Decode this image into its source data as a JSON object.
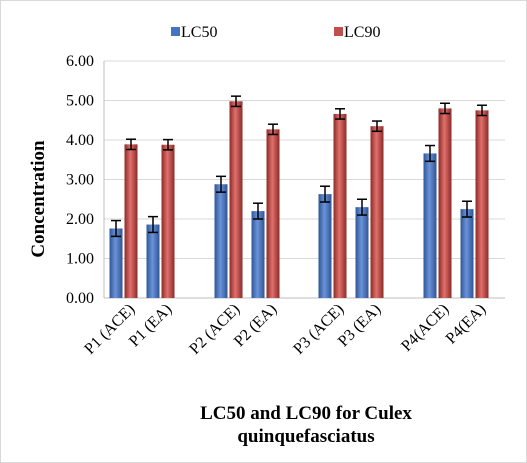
{
  "chart_data": {
    "type": "bar",
    "categories": [
      "P1 (ACE)",
      "P1 (EA)",
      "P2  (ACE)",
      "P2 (EA)",
      "P3 (ACE)",
      "P3 (EA)",
      "P4(ACE)",
      "P4(EA)"
    ],
    "series": [
      {
        "name": "LC50",
        "values": [
          1.76,
          1.86,
          2.88,
          2.2,
          2.63,
          2.3,
          3.66,
          2.25
        ],
        "errors": [
          0.2,
          0.2,
          0.2,
          0.2,
          0.2,
          0.2,
          0.2,
          0.2
        ],
        "color": "#4472c4"
      },
      {
        "name": "LC90",
        "values": [
          3.89,
          3.88,
          4.98,
          4.27,
          4.66,
          4.35,
          4.8,
          4.75
        ],
        "errors": [
          0.13,
          0.13,
          0.13,
          0.13,
          0.13,
          0.13,
          0.13,
          0.13
        ],
        "color": "#c0504d"
      }
    ],
    "title": "LC50 and LC90 for Culex quinquefasciatus",
    "title_lines": [
      "LC50 and LC90 for Culex",
      "quinquefasciatus"
    ],
    "xlabel": "",
    "ylabel": "Concentration",
    "ylim": [
      0,
      6
    ],
    "yticks": [
      "0.00",
      "1.00",
      "2.00",
      "3.00",
      "4.00",
      "5.00",
      "6.00"
    ],
    "grid": true,
    "legend_position": "top"
  }
}
